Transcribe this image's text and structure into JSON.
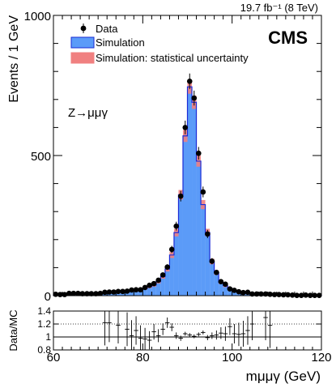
{
  "chart_data": [
    {
      "type": "bar",
      "panel": "main",
      "experiment": "CMS",
      "lumi_label": "19.7 fb⁻¹ (8 TeV)",
      "process_label": "Z→μμγ",
      "ylabel": "Events / 1 GeV",
      "xlim": [
        60,
        120
      ],
      "ylim": [
        0,
        1000
      ],
      "yticks": [
        "0",
        "500",
        "1000"
      ],
      "legend": {
        "placement": "top-left",
        "entries": [
          "Data",
          "Simulation",
          "Simulation: statistical uncertainty"
        ]
      },
      "colors": {
        "simulation_fill": "#5b9bf8",
        "simulation_line": "#1a2bd6",
        "uncertainty": "#f08080",
        "data": "#000000"
      },
      "bin_centers": [
        60.5,
        61.5,
        62.5,
        63.5,
        64.5,
        65.5,
        66.5,
        67.5,
        68.5,
        69.5,
        70.5,
        71.5,
        72.5,
        73.5,
        74.5,
        75.5,
        76.5,
        77.5,
        78.5,
        79.5,
        80.5,
        81.5,
        82.5,
        83.5,
        84.5,
        85.5,
        86.5,
        87.5,
        88.5,
        89.5,
        90.5,
        91.5,
        92.5,
        93.5,
        94.5,
        95.5,
        96.5,
        97.5,
        98.5,
        99.5,
        100.5,
        101.5,
        102.5,
        103.5,
        104.5,
        105.5,
        106.5,
        107.5,
        108.5,
        109.5,
        110.5,
        111.5,
        112.5,
        113.5,
        114.5,
        115.5,
        116.5,
        117.5,
        118.5,
        119.5
      ],
      "series": [
        {
          "name": "Simulation",
          "style": "histogram",
          "values": [
            2,
            2,
            2,
            4,
            4,
            4,
            5,
            5,
            6,
            6,
            8,
            9,
            10,
            11,
            12,
            14,
            15,
            17,
            19,
            21,
            26,
            32,
            38,
            50,
            68,
            95,
            145,
            225,
            360,
            570,
            745,
            690,
            480,
            325,
            225,
            122,
            82,
            48,
            36,
            25,
            18,
            13,
            10,
            8,
            6,
            5,
            4,
            4,
            3,
            3,
            2,
            2,
            2,
            2,
            1,
            1,
            1,
            1,
            1,
            1
          ]
        },
        {
          "name": "Data",
          "style": "points",
          "values": [
            5,
            4,
            4,
            8,
            8,
            8,
            7,
            7,
            7,
            7,
            8,
            12,
            13,
            13,
            15,
            15,
            16,
            20,
            21,
            21,
            29,
            37,
            43,
            55,
            74,
            102,
            165,
            248,
            355,
            600,
            765,
            705,
            508,
            370,
            220,
            123,
            83,
            50,
            41,
            24,
            19,
            14,
            11,
            12,
            6,
            6,
            6,
            6,
            5,
            4,
            4,
            3,
            3,
            2,
            1,
            1,
            2,
            1,
            1,
            1
          ]
        }
      ]
    },
    {
      "type": "scatter",
      "panel": "ratio",
      "ylabel": "Data/MC",
      "xlabel": "mμμγ (GeV)",
      "xlim": [
        60,
        120
      ],
      "ylim": [
        0.8,
        1.4
      ],
      "xticks": [
        "60",
        "80",
        "100",
        "120"
      ],
      "yticks": [
        "0.8",
        "1",
        "1.2",
        "1.4"
      ],
      "series": [
        {
          "name": "Data/MC",
          "x": [
            71.5,
            72.5,
            74.5,
            76.5,
            77.5,
            78.5,
            79.5,
            80.5,
            81.5,
            82.5,
            83.5,
            84.5,
            85.5,
            86.5,
            87.5,
            88.5,
            89.5,
            90.5,
            91.5,
            92.5,
            93.5,
            94.5,
            95.5,
            96.5,
            97.5,
            98.5,
            99.5,
            100.5,
            101.5,
            102.5,
            103.5,
            104.5,
            107.5,
            108.5
          ],
          "values": [
            1.22,
            1.22,
            1.18,
            1.12,
            1.02,
            1.1,
            0.98,
            0.97,
            0.95,
            1.08,
            1.02,
            1.12,
            1.22,
            1.15,
            1.02,
            0.98,
            1.05,
            1.03,
            1.01,
            1.04,
            1.07,
            0.99,
            1.02,
            1.03,
            1.06,
            1.05,
            1.16,
            1.05,
            1.04,
            1.05,
            1.1,
            1.2,
            1.3,
            1.18
          ],
          "errors": [
            0.35,
            0.3,
            0.28,
            0.26,
            0.24,
            0.22,
            0.2,
            0.17,
            0.14,
            0.12,
            0.1,
            0.09,
            0.08,
            0.06,
            0.05,
            0.04,
            0.03,
            0.03,
            0.03,
            0.03,
            0.03,
            0.04,
            0.05,
            0.07,
            0.09,
            0.11,
            0.13,
            0.15,
            0.18,
            0.2,
            0.22,
            0.25,
            0.35,
            0.35
          ]
        }
      ]
    }
  ]
}
